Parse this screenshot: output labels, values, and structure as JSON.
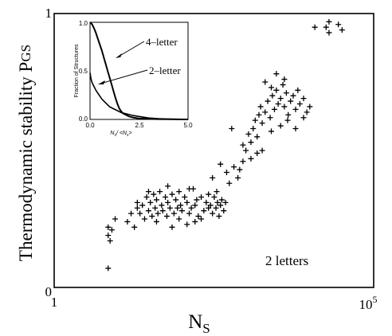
{
  "chart_data": [
    {
      "type": "scatter",
      "marker": "+",
      "xscale": "log",
      "xlabel_main": "N",
      "xlabel_sub": "S",
      "ylabel_main": "Thermodynamic stability P",
      "ylabel_sub": "GS",
      "x_tick_labels": {
        "left": "1",
        "right_base": "10",
        "right_exp": "5"
      },
      "y_tick_labels": {
        "bottom": "0",
        "top": "1"
      },
      "xlim": [
        1,
        100000
      ],
      "ylim": [
        0,
        1
      ],
      "annotation": "2 letters",
      "points": [
        [
          7,
          0.07
        ],
        [
          7,
          0.19
        ],
        [
          8,
          0.21
        ],
        [
          7,
          0.22
        ],
        [
          9,
          0.25
        ],
        [
          7.5,
          0.17
        ],
        [
          14,
          0.24
        ],
        [
          16,
          0.27
        ],
        [
          18,
          0.22
        ],
        [
          20,
          0.29
        ],
        [
          22,
          0.27
        ],
        [
          24,
          0.3
        ],
        [
          26,
          0.25
        ],
        [
          28,
          0.33
        ],
        [
          30,
          0.28
        ],
        [
          32,
          0.31
        ],
        [
          34,
          0.26
        ],
        [
          36,
          0.34
        ],
        [
          38,
          0.29
        ],
        [
          40,
          0.32
        ],
        [
          42,
          0.27
        ],
        [
          45,
          0.35
        ],
        [
          48,
          0.3
        ],
        [
          50,
          0.28
        ],
        [
          55,
          0.33
        ],
        [
          58,
          0.26
        ],
        [
          60,
          0.31
        ],
        [
          65,
          0.29
        ],
        [
          70,
          0.34
        ],
        [
          75,
          0.27
        ],
        [
          80,
          0.32
        ],
        [
          85,
          0.29
        ],
        [
          90,
          0.35
        ],
        [
          95,
          0.3
        ],
        [
          100,
          0.28
        ],
        [
          110,
          0.33
        ],
        [
          120,
          0.31
        ],
        [
          130,
          0.27
        ],
        [
          140,
          0.29
        ],
        [
          150,
          0.36
        ],
        [
          160,
          0.3
        ],
        [
          170,
          0.32
        ],
        [
          180,
          0.26
        ],
        [
          200,
          0.33
        ],
        [
          220,
          0.28
        ],
        [
          240,
          0.31
        ],
        [
          260,
          0.34
        ],
        [
          280,
          0.3
        ],
        [
          300,
          0.27
        ],
        [
          320,
          0.33
        ],
        [
          340,
          0.29
        ],
        [
          360,
          0.31
        ],
        [
          380,
          0.26
        ],
        [
          400,
          0.3
        ],
        [
          420,
          0.32
        ],
        [
          450,
          0.28
        ],
        [
          480,
          0.31
        ],
        [
          20,
          0.31
        ],
        [
          30,
          0.35
        ],
        [
          40,
          0.24
        ],
        [
          60,
          0.37
        ],
        [
          90,
          0.25
        ],
        [
          130,
          0.36
        ],
        [
          200,
          0.25
        ],
        [
          260,
          0.29
        ],
        [
          350,
          0.35
        ],
        [
          120,
          0.23
        ],
        [
          70,
          0.22
        ],
        [
          160,
          0.24
        ],
        [
          300,
          0.4
        ],
        [
          400,
          0.45
        ],
        [
          500,
          0.42
        ],
        [
          550,
          0.38
        ],
        [
          650,
          0.44
        ],
        [
          750,
          0.4
        ],
        [
          800,
          0.43
        ],
        [
          900,
          0.52
        ],
        [
          1000,
          0.5
        ],
        [
          1100,
          0.56
        ],
        [
          1200,
          0.53
        ],
        [
          1300,
          0.58
        ],
        [
          1400,
          0.61
        ],
        [
          1500,
          0.55
        ],
        [
          1600,
          0.63
        ],
        [
          1700,
          0.66
        ],
        [
          1800,
          0.6
        ],
        [
          2000,
          0.64
        ],
        [
          2200,
          0.68
        ],
        [
          2400,
          0.62
        ],
        [
          2600,
          0.7
        ],
        [
          2800,
          0.65
        ],
        [
          3000,
          0.72
        ],
        [
          3200,
          0.67
        ],
        [
          3500,
          0.69
        ],
        [
          3800,
          0.74
        ],
        [
          4000,
          0.66
        ],
        [
          4300,
          0.71
        ],
        [
          4600,
          0.63
        ],
        [
          5000,
          0.68
        ],
        [
          5500,
          0.7
        ],
        [
          6000,
          0.65
        ],
        [
          6500,
          0.72
        ],
        [
          7000,
          0.67
        ],
        [
          8000,
          0.69
        ],
        [
          9000,
          0.64
        ],
        [
          10000,
          0.66
        ],
        [
          1200,
          0.47
        ],
        [
          1500,
          0.49
        ],
        [
          2500,
          0.57
        ],
        [
          3500,
          0.59
        ],
        [
          4500,
          0.61
        ],
        [
          6000,
          0.58
        ],
        [
          8000,
          0.62
        ],
        [
          2000,
          0.75
        ],
        [
          3000,
          0.78
        ],
        [
          4000,
          0.76
        ],
        [
          2500,
          0.73
        ],
        [
          12000,
          0.95
        ],
        [
          18000,
          0.95
        ],
        [
          20000,
          0.93
        ],
        [
          20000,
          0.97
        ],
        [
          28000,
          0.96
        ],
        [
          32000,
          0.94
        ],
        [
          600,
          0.58
        ],
        [
          900,
          0.46
        ],
        [
          1800,
          0.5
        ]
      ]
    },
    {
      "type": "line",
      "title": "inset",
      "ylabel": "Fraction of Structures",
      "xlabel_main": "N",
      "xlabel_sub": "s",
      "xlabel_tail": "/ <N",
      "xlabel_tail_sub": "s",
      "xlabel_close": ">",
      "x_tick_labels": [
        "0.0",
        "2.5",
        "5.0"
      ],
      "y_tick_labels": [
        "0.0",
        "0.5",
        "1.0"
      ],
      "xlim": [
        0,
        5
      ],
      "ylim": [
        0,
        1
      ],
      "series": [
        {
          "name": "4–letter",
          "x": [
            0.0,
            0.1,
            0.2,
            0.3,
            0.4,
            0.5,
            0.6,
            0.7,
            0.8,
            0.9,
            1.0,
            1.1,
            1.2,
            1.3,
            1.4,
            1.5,
            1.6,
            1.7,
            1.8,
            1.9,
            2.0,
            2.2,
            2.5,
            3.0,
            3.5,
            4.0,
            4.5,
            5.0
          ],
          "y": [
            1.0,
            0.98,
            0.94,
            0.89,
            0.83,
            0.77,
            0.71,
            0.64,
            0.57,
            0.5,
            0.43,
            0.36,
            0.29,
            0.22,
            0.16,
            0.11,
            0.08,
            0.06,
            0.05,
            0.04,
            0.03,
            0.02,
            0.01,
            0.005,
            0.003,
            0.002,
            0.001,
            0.0
          ]
        },
        {
          "name": "2–letter",
          "x": [
            0.0,
            0.05,
            0.1,
            0.2,
            0.3,
            0.4,
            0.5,
            0.6,
            0.7,
            0.8,
            0.9,
            1.0,
            1.2,
            1.4,
            1.6,
            1.8,
            2.0,
            2.2,
            2.5,
            3.0,
            3.5,
            4.0,
            4.5,
            5.0
          ],
          "y": [
            0.48,
            0.42,
            0.38,
            0.34,
            0.3,
            0.27,
            0.24,
            0.21,
            0.19,
            0.17,
            0.15,
            0.13,
            0.11,
            0.09,
            0.07,
            0.06,
            0.05,
            0.04,
            0.03,
            0.015,
            0.008,
            0.004,
            0.002,
            0.0
          ]
        }
      ]
    }
  ]
}
